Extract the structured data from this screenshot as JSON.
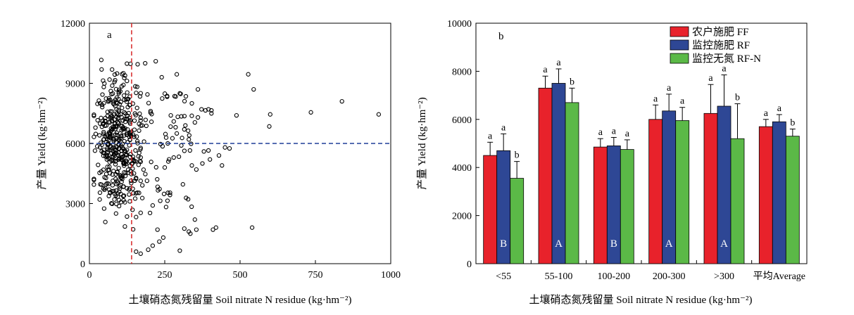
{
  "chart_data": [
    {
      "type": "scatter",
      "panel_label": "a",
      "xlabel": "土壤硝态氮残留量 Soil nitrate N residue (kg·hm⁻²)",
      "ylabel": "产量 Yield (kg·hm⁻²)",
      "xlim": [
        0,
        1000
      ],
      "ylim": [
        0,
        12000
      ],
      "xticks": [
        0,
        250,
        500,
        750,
        1000
      ],
      "yticks": [
        0,
        3000,
        6000,
        9000,
        12000
      ],
      "xtick_labels": [
        "0",
        "250",
        "500",
        "750",
        "1000"
      ],
      "ytick_labels": [
        "0",
        "3000",
        "6000",
        "9000",
        "12000"
      ],
      "reference_lines": {
        "vertical_x": 140,
        "horizontal_y": 6000,
        "vertical_color": "#d62728",
        "horizontal_color": "#1f3f99"
      },
      "outlier_points": [
        [
          960,
          7450
        ],
        [
          838,
          8100
        ],
        [
          735,
          7550
        ],
        [
          600,
          7450
        ],
        [
          597,
          6850
        ],
        [
          545,
          8700
        ],
        [
          527,
          9450
        ],
        [
          488,
          7400
        ],
        [
          465,
          5750
        ],
        [
          450,
          5800
        ],
        [
          440,
          4900
        ],
        [
          430,
          5400
        ],
        [
          420,
          1800
        ],
        [
          410,
          1700
        ],
        [
          540,
          1800
        ],
        [
          405,
          7500
        ],
        [
          400,
          5200
        ],
        [
          395,
          5650
        ],
        [
          380,
          5600
        ],
        [
          375,
          5000
        ],
        [
          355,
          4700
        ],
        [
          340,
          4900
        ],
        [
          355,
          1700
        ],
        [
          350,
          2200
        ],
        [
          335,
          1500
        ],
        [
          330,
          1600
        ],
        [
          300,
          650
        ],
        [
          315,
          1750
        ],
        [
          395,
          7700
        ],
        [
          385,
          7650
        ],
        [
          405,
          7650
        ],
        [
          372,
          7700
        ],
        [
          360,
          7300
        ],
        [
          350,
          7050
        ],
        [
          320,
          8350
        ],
        [
          300,
          8500
        ],
        [
          290,
          9450
        ],
        [
          240,
          9300
        ],
        [
          220,
          10100
        ],
        [
          185,
          10000
        ],
        [
          160,
          9950
        ],
        [
          330,
          6200
        ],
        [
          315,
          6700
        ],
        [
          305,
          5900
        ],
        [
          290,
          6500
        ],
        [
          280,
          7100
        ],
        [
          270,
          7400
        ],
        [
          340,
          8000
        ],
        [
          360,
          8700
        ],
        [
          280,
          5300
        ],
        [
          262,
          5100
        ],
        [
          250,
          4800
        ],
        [
          245,
          1300
        ],
        [
          232,
          1100
        ],
        [
          226,
          1700
        ],
        [
          210,
          900
        ],
        [
          195,
          700
        ],
        [
          170,
          500
        ],
        [
          155,
          600
        ]
      ]
    },
    {
      "type": "bar",
      "panel_label": "b",
      "xlabel": "土壤硝态氮残留量 Soil nitrate N residue (kg·hm⁻²)",
      "ylabel": "产量 Yield (kg·hm⁻²)",
      "ylim": [
        0,
        10000
      ],
      "yticks": [
        0,
        2000,
        4000,
        6000,
        8000,
        10000
      ],
      "ytick_labels": [
        "0",
        "2000",
        "4000",
        "6000",
        "8000",
        "10000"
      ],
      "categories": [
        "<55",
        "55-100",
        "100-200",
        "200-300",
        ">300",
        "平均Average"
      ],
      "legend_position": "top-right",
      "series": [
        {
          "name": "农户施肥 FF",
          "color": "#e8222b",
          "values": [
            4500,
            7300,
            4850,
            6000,
            6250,
            5700
          ],
          "errors": [
            550,
            500,
            350,
            600,
            1200,
            300
          ],
          "sig": [
            "a",
            "a",
            "a",
            "a",
            "a",
            "a"
          ]
        },
        {
          "name": "监控施肥 RF",
          "color": "#2e4795",
          "values": [
            4700,
            7500,
            4900,
            6350,
            6550,
            5900
          ],
          "errors": [
            700,
            600,
            350,
            700,
            1300,
            300
          ],
          "sig": [
            "a",
            "a",
            "a",
            "a",
            "a",
            "a"
          ]
        },
        {
          "name": "监控无氮 RF-N",
          "color": "#5bb947",
          "values": [
            3550,
            6700,
            4750,
            5950,
            5200,
            5300
          ],
          "errors": [
            700,
            600,
            400,
            550,
            1450,
            300
          ],
          "sig": [
            "b",
            "b",
            "a",
            "a",
            "b",
            "b"
          ]
        }
      ],
      "group_letters": [
        "B",
        "A",
        "B",
        "A",
        "A",
        ""
      ]
    }
  ]
}
